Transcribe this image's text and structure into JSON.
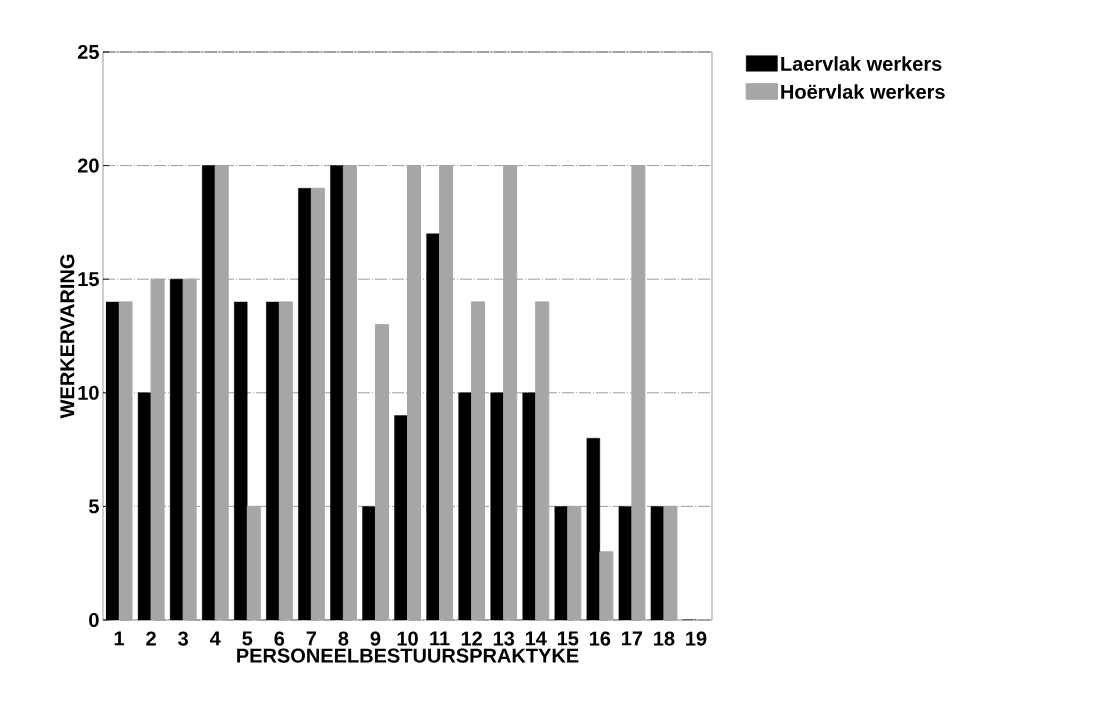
{
  "chart_data": {
    "type": "bar",
    "xlabel": "PERSONEELBESTUURSPRAKTYKE",
    "ylabel": "WERKERVARING",
    "categories": [
      "1",
      "2",
      "3",
      "4",
      "5",
      "6",
      "7",
      "8",
      "9",
      "10",
      "11",
      "12",
      "13",
      "14",
      "15",
      "16",
      "17",
      "18",
      "19"
    ],
    "series": [
      {
        "name": "Laervlak werkers",
        "color": "#000000",
        "values": [
          14,
          10,
          15,
          20,
          14,
          14,
          19,
          20,
          5,
          9,
          17,
          10,
          10,
          10,
          5,
          8,
          5,
          5,
          0
        ]
      },
      {
        "name": "Hoërvlak werkers",
        "color": "#a6a6a6",
        "values": [
          14,
          15,
          15,
          20,
          5,
          14,
          19,
          20,
          13,
          20,
          20,
          14,
          20,
          14,
          5,
          3,
          20,
          5,
          0
        ]
      }
    ],
    "ylim": [
      0,
      25
    ],
    "yticks": [
      0,
      5,
      10,
      15,
      20,
      25
    ],
    "grid": "y",
    "legend": "top right"
  }
}
